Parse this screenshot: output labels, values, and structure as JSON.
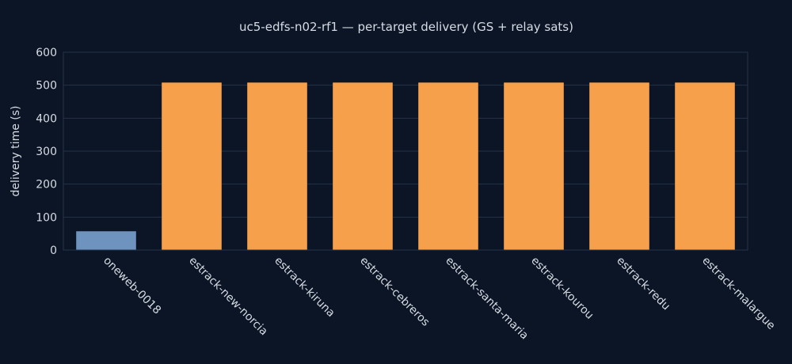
{
  "chart_data": {
    "type": "bar",
    "title": "uc5-edfs-n02-rf1 — per-target delivery (GS + relay sats)",
    "xlabel": "",
    "ylabel": "delivery time (s)",
    "ylim": [
      0,
      600
    ],
    "yticks": [
      0,
      100,
      200,
      300,
      400,
      500,
      600
    ],
    "grid": true,
    "categories": [
      "oneweb-0018",
      "estrack-new-norcia",
      "estrack-kiruna",
      "estrack-cebreros",
      "estrack-santa-maria",
      "estrack-kourou",
      "estrack-redu",
      "estrack-malargue"
    ],
    "values": [
      57,
      508,
      508,
      508,
      508,
      508,
      508,
      508
    ],
    "colors": [
      "#6f93bf",
      "#f7a04c",
      "#f7a04c",
      "#f7a04c",
      "#f7a04c",
      "#f7a04c",
      "#f7a04c",
      "#f7a04c"
    ]
  }
}
